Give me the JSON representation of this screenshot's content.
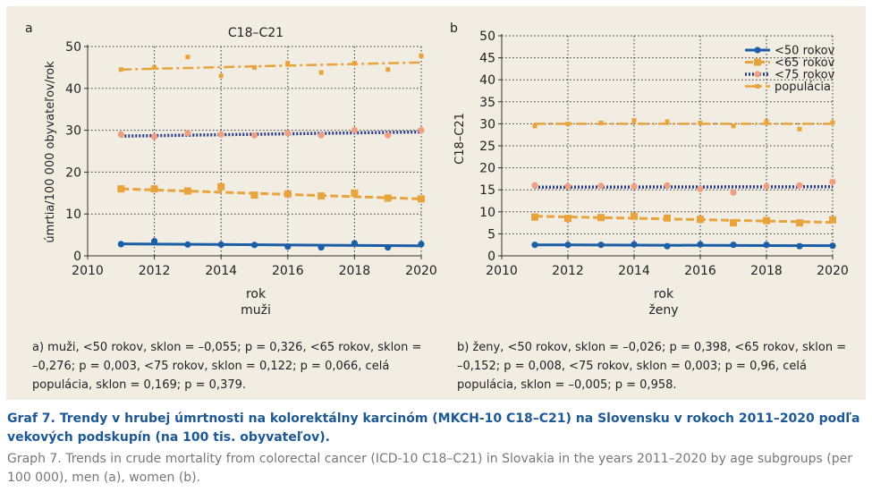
{
  "chart_data": [
    {
      "type": "line",
      "panel_letter": "a",
      "title": "C18–C21",
      "xlabel": "rok",
      "xlabel2": "muži",
      "ylabel": "úmrtia/100 000 obyvateľov/rok",
      "xlim": [
        2010,
        2020
      ],
      "ylim": [
        0,
        50
      ],
      "xticks": [
        2010,
        2012,
        2014,
        2016,
        2018,
        2020
      ],
      "yticks": [
        0,
        10,
        20,
        30,
        40,
        50
      ],
      "grid": true,
      "x": [
        2011,
        2012,
        2013,
        2014,
        2015,
        2016,
        2017,
        2018,
        2019,
        2020
      ],
      "series": [
        {
          "name": "<50 rokov",
          "color": "#1a5ea8",
          "style": "solid",
          "marker": "circle",
          "values": [
            2.8,
            3.5,
            2.7,
            2.7,
            2.6,
            2.2,
            2.0,
            3.0,
            2.0,
            2.8
          ],
          "trend": [
            2.85,
            2.4
          ]
        },
        {
          "name": "<65 rokov",
          "color": "#e8a33d",
          "style": "dashed",
          "marker": "square",
          "values": [
            16.0,
            16.0,
            15.5,
            16.5,
            14.5,
            14.8,
            14.3,
            15.0,
            13.8,
            13.6
          ],
          "trend": [
            16.0,
            13.6
          ]
        },
        {
          "name": "<75 rokov",
          "color": "#e8a33d",
          "style": "dotted-navy",
          "marker": "circle",
          "values": [
            29.0,
            28.5,
            29.3,
            29.0,
            28.8,
            29.3,
            28.8,
            30.0,
            28.8,
            30.0
          ],
          "trend": [
            28.6,
            29.6
          ]
        },
        {
          "name": "populácia",
          "color": "#e8a33d",
          "style": "dashdot",
          "marker": "square-small",
          "values": [
            44.5,
            45.0,
            47.5,
            43.0,
            45.0,
            46.0,
            43.8,
            46.0,
            44.5,
            47.8
          ],
          "trend": [
            44.5,
            46.2
          ]
        }
      ]
    },
    {
      "type": "line",
      "panel_letter": "b",
      "title": "",
      "xlabel": "rok",
      "xlabel2": "ženy",
      "ylabel": "C18–C21",
      "xlim": [
        2010,
        2020
      ],
      "ylim": [
        0,
        50
      ],
      "xticks": [
        2010,
        2012,
        2014,
        2016,
        2018,
        2020
      ],
      "yticks": [
        0,
        5,
        10,
        15,
        20,
        25,
        30,
        35,
        40,
        45,
        50
      ],
      "grid": true,
      "legend_position": "top-right",
      "x": [
        2011,
        2012,
        2013,
        2014,
        2015,
        2016,
        2017,
        2018,
        2019,
        2020
      ],
      "series": [
        {
          "name": "<50 rokov",
          "color": "#1a5ea8",
          "style": "solid",
          "marker": "circle",
          "values": [
            2.5,
            2.5,
            2.5,
            2.6,
            2.2,
            2.6,
            2.5,
            2.5,
            2.2,
            2.3
          ],
          "trend": [
            2.5,
            2.3
          ]
        },
        {
          "name": "<65 rokov",
          "color": "#e8a33d",
          "style": "dashed",
          "marker": "square",
          "values": [
            8.8,
            8.5,
            8.7,
            9.0,
            8.6,
            8.3,
            7.5,
            8.0,
            7.5,
            8.2
          ],
          "trend": [
            9.0,
            7.6
          ]
        },
        {
          "name": "<75 rokov",
          "color": "#e8a33d",
          "style": "dotted-navy",
          "marker": "circle",
          "values": [
            16.0,
            15.8,
            15.9,
            15.8,
            16.0,
            15.2,
            14.4,
            15.8,
            16.0,
            16.8
          ],
          "trend": [
            15.6,
            15.7
          ]
        },
        {
          "name": "populácia",
          "color": "#e8a33d",
          "style": "dashdot",
          "marker": "square-small",
          "values": [
            29.5,
            30.0,
            30.2,
            30.8,
            30.5,
            30.2,
            29.5,
            30.5,
            28.8,
            30.3
          ],
          "trend": [
            30.0,
            30.0
          ]
        }
      ]
    }
  ],
  "notes": {
    "a": "a) muži, <50 rokov, sklon = –0,055; p = 0,326, <65 rokov, sklon = –0,276; p = 0,003, <75 rokov, sklon = 0,122; p = 0,066, celá populá­cia, sklon = 0,169; p = 0,379.",
    "b": "b) ženy, <50 rokov, sklon = –0,026; p = 0,398, <65 rokov, sklon = –0,152; p = 0,008, <75 rokov, sklon = 0,003; p = 0,96, celá populá­cia, sklon = –0,005; p = 0,958."
  },
  "caption": {
    "sk": "Graf 7. Trendy v hrubej úmrtnosti na kolorektálny karcinóm (MKCH-10 C18–C21) na Slovensku v rokoch 2011–2020 podľa vekových podskupín (na 100 tis. obyvateľov).",
    "en": "Graph 7. Trends in crude mortality from colorectal cancer (ICD-10 C18–C21) in Slovakia in the years 2011–2020 by age subgroups (per 100 000), men (a), women (b)."
  },
  "colors": {
    "panel_bg": "#f1ede3",
    "blue": "#1a5ea8",
    "orange": "#e8a33d",
    "navy": "#283a8c",
    "salmon": "#f0a080",
    "caption": "#1d5896"
  }
}
